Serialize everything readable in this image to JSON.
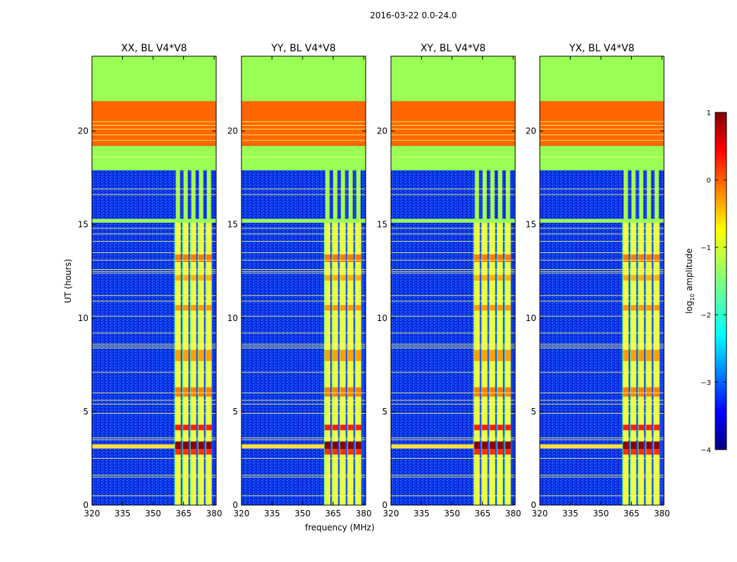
{
  "chart_data": {
    "type": "heatmap",
    "suptitle": "2016-03-22 0.0-24.0",
    "xlabel": "frequency (MHz)",
    "ylabel": "UT (hours)",
    "xlim": [
      320,
      381
    ],
    "ylim": [
      0,
      24
    ],
    "xticks": [
      320,
      335,
      350,
      365,
      380
    ],
    "yticks": [
      0,
      5,
      10,
      15,
      20
    ],
    "panels": [
      {
        "title": "XX, BL V4*V8"
      },
      {
        "title": "YY, BL V4*V8"
      },
      {
        "title": "XY, BL V4*V8"
      },
      {
        "title": "YX, BL V4*V8"
      }
    ],
    "regions": {
      "flagged_high_hours": [
        21.6,
        24.0
      ],
      "flagged_orange_hours": [
        19.2,
        21.6
      ],
      "flagged_mid_hours": [
        15.1,
        17.9
      ],
      "active_band_mhz": [
        360.5,
        379.5
      ],
      "strong_burst_hours": [
        3.0,
        3.4
      ]
    },
    "colorbar": {
      "label_main": "log",
      "label_sub": "10",
      "label_rest": " amplitude",
      "range": [
        -4,
        1
      ],
      "ticks": [
        "1",
        "0",
        "−1",
        "−2",
        "−3",
        "−4"
      ],
      "tick_values": [
        1,
        0,
        -1,
        -2,
        -3,
        -4
      ]
    },
    "colors": {
      "background_low": "#0a2fe6",
      "flag_green": "#99ff55",
      "flag_orange": "#ff6600",
      "line_yellow": "#ffff66",
      "burst_red": "#8b0000"
    }
  }
}
